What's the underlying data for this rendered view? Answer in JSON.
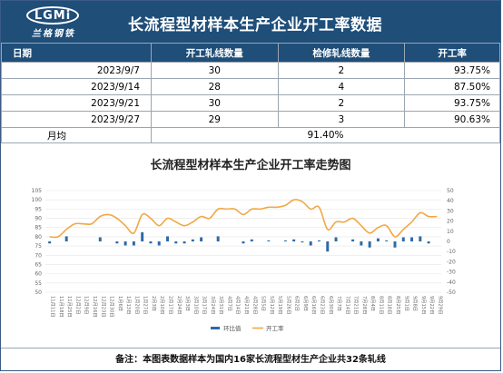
{
  "logo": {
    "text": "LGMi",
    "cn": "兰格钢铁"
  },
  "title": "长流程型材样本生产企业开工率数据",
  "table": {
    "headers": [
      "日期",
      "开工轧线数量",
      "检修轧线数量",
      "开工率"
    ],
    "rows": [
      {
        "date": "2023/9/7",
        "open": "30",
        "maint": "2",
        "rate": "93.75%"
      },
      {
        "date": "2023/9/14",
        "open": "28",
        "maint": "4",
        "rate": "87.50%"
      },
      {
        "date": "2023/9/21",
        "open": "30",
        "maint": "2",
        "rate": "93.75%"
      },
      {
        "date": "2023/9/27",
        "open": "29",
        "maint": "3",
        "rate": "90.63%"
      }
    ],
    "avg_label": "月均",
    "avg_value": "91.40%"
  },
  "chart_data": {
    "type": "line",
    "title": "长流程型材样本生产企业开工率走势图",
    "left_axis": {
      "ylim": [
        50,
        105
      ],
      "ticks": [
        50,
        55,
        60,
        65,
        70,
        75,
        80,
        85,
        90,
        95,
        100,
        105
      ]
    },
    "right_axis": {
      "ylim": [
        -50,
        50
      ],
      "ticks": [
        -50,
        -40,
        -30,
        -20,
        -10,
        0,
        10,
        20,
        30,
        40,
        50
      ]
    },
    "x": [
      "11月11日",
      "11月18日",
      "11月25日",
      "12月2日",
      "12月9日",
      "12月16日",
      "12月23日",
      "12月30日",
      "1月6日",
      "1月13日",
      "1月20日",
      "1月27日",
      "2月3日",
      "2月10日",
      "2月17日",
      "2月24日",
      "3月3日",
      "3月10日",
      "3月17日",
      "3月24日",
      "3月31日",
      "4月7日",
      "4月14日",
      "4月21日",
      "4月28日",
      "5月5日",
      "5月12日",
      "5月19日",
      "5月26日",
      "6月2日",
      "6月9日",
      "6月16日",
      "6月23日",
      "6月30日",
      "7月7日",
      "7月14日",
      "7月21日",
      "7月28日",
      "8月4日",
      "8月11日",
      "8月18日",
      "8月25日",
      "9月1日",
      "9月8日",
      "9月15日",
      "9月22日",
      "9月29日"
    ],
    "series": [
      {
        "name": "开工率",
        "axis": "left",
        "color": "#f0a845",
        "values": [
          80,
          80,
          84,
          87,
          87,
          87,
          91,
          92,
          90,
          86,
          82,
          92,
          90,
          86,
          90,
          88,
          86,
          88,
          91,
          90,
          95,
          95,
          95,
          92,
          95,
          95,
          96,
          96,
          97,
          100,
          99,
          95,
          96,
          84,
          88,
          88,
          90,
          86,
          82,
          85,
          86,
          80,
          84,
          88,
          93,
          91,
          91
        ]
      },
      {
        "name": "环比值",
        "axis": "right",
        "color": "#2e6aa6",
        "values": [
          -2,
          0,
          5,
          0,
          0,
          0,
          4,
          0,
          -2,
          -4,
          -4,
          9,
          -2,
          -4,
          5,
          -2,
          -2,
          2,
          4,
          0,
          5,
          0,
          0,
          -2,
          2,
          0,
          1,
          0,
          1,
          2,
          -1,
          -4,
          1,
          -10,
          4,
          0,
          2,
          -4,
          -6,
          3,
          1,
          -6,
          4,
          4,
          5,
          -2,
          0
        ]
      }
    ]
  },
  "legend": {
    "bar_label": "环比值",
    "line_label": "开工率"
  },
  "note": "备注：本图表数据样本为国内16家长流程型材生产企业共32条轧线"
}
